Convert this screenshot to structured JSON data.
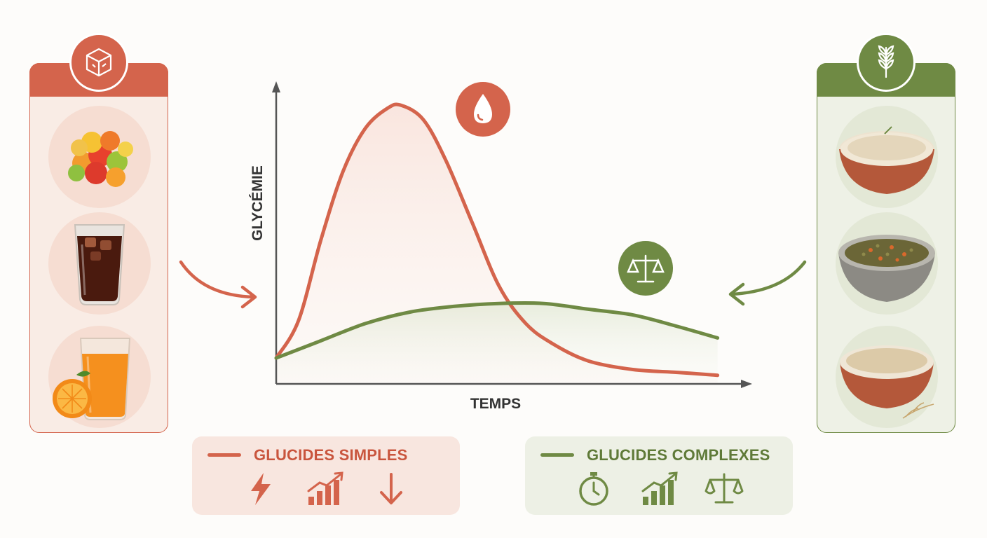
{
  "colors": {
    "simple": "#d4644c",
    "complex": "#6f8a44",
    "axis": "#555555"
  },
  "chart_data": {
    "type": "line",
    "xlabel": "TEMPS",
    "ylabel": "GLYCÉMIE",
    "xlim": [
      0,
      100
    ],
    "ylim": [
      0,
      100
    ],
    "series": [
      {
        "name": "GLUCIDES SIMPLES",
        "color": "#d4644c",
        "x": [
          0,
          5,
          10,
          15,
          20,
          25,
          28,
          33,
          38,
          44,
          50,
          56,
          62,
          70,
          80,
          90,
          99
        ],
        "y": [
          9,
          22,
          50,
          74,
          89,
          96,
          97,
          92,
          78,
          56,
          34,
          21,
          14,
          8,
          5,
          4,
          3
        ]
      },
      {
        "name": "GLUCIDES COMPLEXES",
        "color": "#6f8a44",
        "x": [
          0,
          10,
          20,
          30,
          40,
          50,
          60,
          70,
          80,
          90,
          99
        ],
        "y": [
          9,
          15,
          21,
          25,
          27,
          28,
          28,
          26,
          24,
          20,
          16
        ]
      }
    ]
  },
  "panels": {
    "simple": {
      "badge_icon": "sugar-cube-icon",
      "foods": [
        "gummy-candies-icon",
        "cola-glass-icon",
        "orange-juice-icon"
      ]
    },
    "complex": {
      "badge_icon": "wheat-icon",
      "foods": [
        "rice-bowl-icon",
        "lentil-bowl-icon",
        "oat-bowl-icon"
      ]
    }
  },
  "chart_badges": {
    "simple": "blood-drop-icon",
    "complex": "balance-scale-icon"
  },
  "legend": {
    "simple": {
      "label": "GLUCIDES SIMPLES",
      "icons": [
        "lightning-icon",
        "rising-chart-icon",
        "down-arrow-icon"
      ]
    },
    "complex": {
      "label": "GLUCIDES COMPLEXES",
      "icons": [
        "stopwatch-icon",
        "rising-chart-icon",
        "balance-scale-icon"
      ]
    }
  }
}
